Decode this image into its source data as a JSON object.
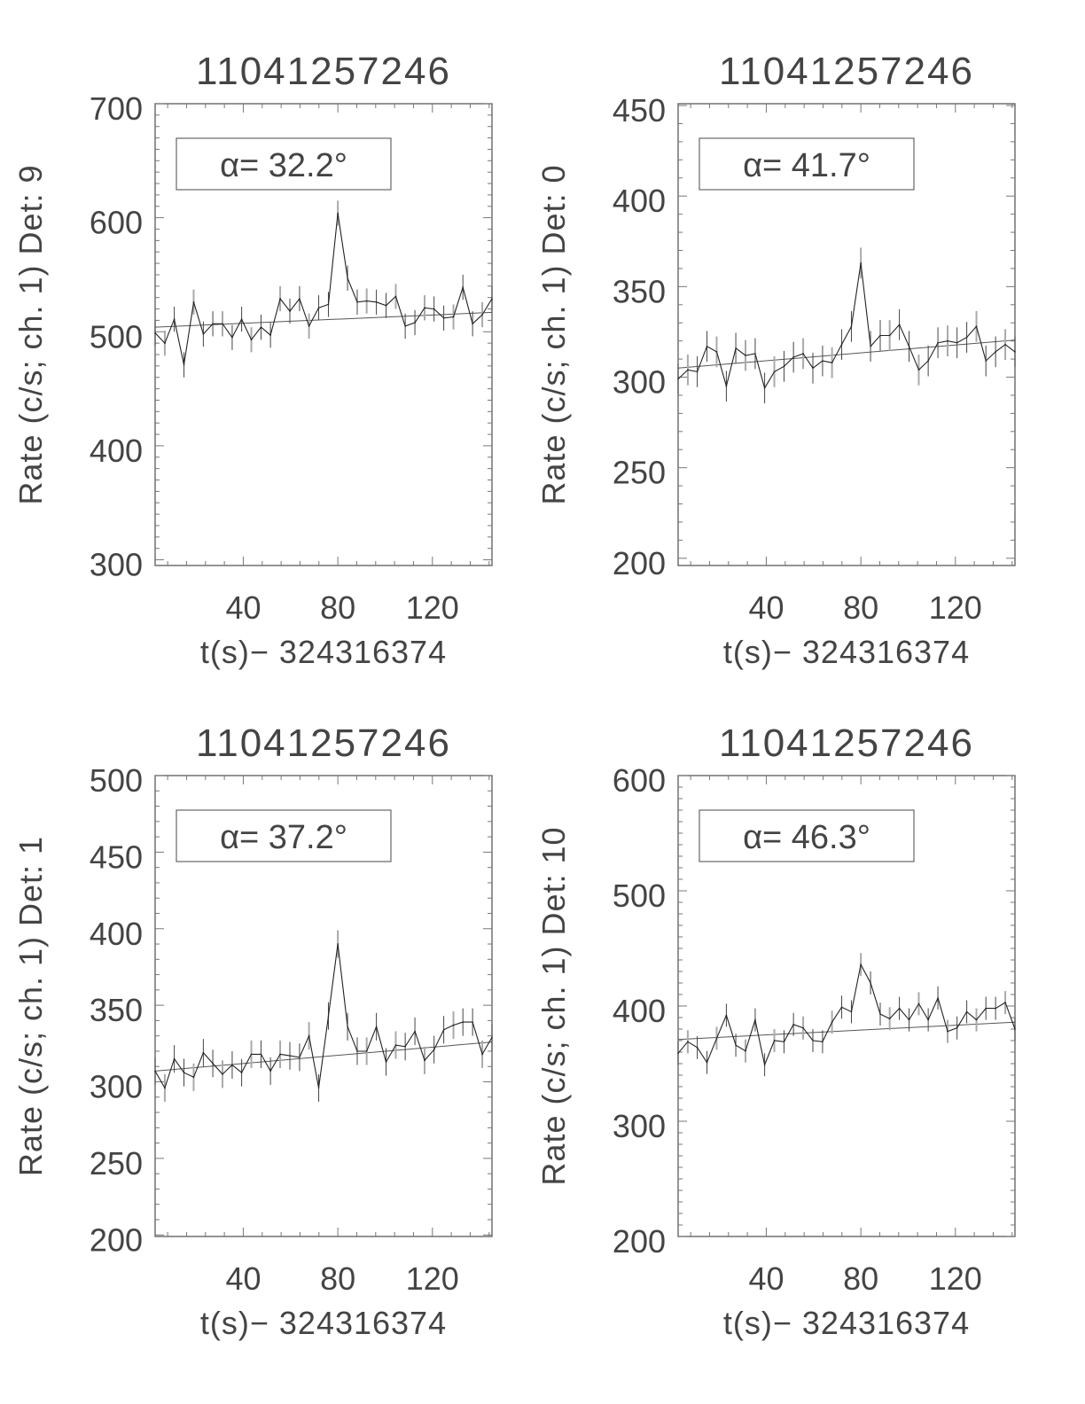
{
  "chart_data": [
    {
      "type": "line",
      "title": "11041257246",
      "ylabel": "Rate (c/s; ch. 1) Det: 9",
      "xlabel": "t(s)− 324316374",
      "annotation": "α= 32.2°",
      "xlim": [
        2.7,
        145.2
      ],
      "ylim": [
        295,
        700
      ],
      "xticks": [
        40,
        80,
        120
      ],
      "yticks": [
        300,
        400,
        500,
        600,
        700
      ],
      "grid": false,
      "x": [
        2.7,
        6.8,
        10.8,
        14.9,
        19.0,
        23.1,
        27.1,
        31.2,
        35.3,
        39.3,
        43.4,
        47.5,
        51.5,
        55.6,
        59.7,
        63.8,
        67.8,
        71.9,
        76.0,
        80.0,
        84.1,
        88.2,
        92.2,
        96.3,
        100.4,
        104.5,
        108.5,
        112.6,
        116.7,
        120.7,
        124.8,
        128.9,
        132.9,
        137.0,
        141.1,
        145.2
      ],
      "y": [
        499,
        490,
        511,
        471,
        526,
        498,
        507,
        507,
        495,
        511,
        493,
        504,
        497,
        529,
        518,
        529,
        505,
        521,
        524,
        604,
        547,
        526,
        527,
        526,
        523,
        531,
        505,
        508,
        521,
        520,
        512,
        513,
        539,
        507,
        515,
        529
      ],
      "yerr": 11,
      "fit": [
        [
          2.7,
          504
        ],
        [
          145.2,
          517
        ]
      ]
    },
    {
      "type": "line",
      "title": "11041257246",
      "ylabel": "Rate (c/s; ch. 1) Det: 0",
      "xlabel": "t(s)− 324316374",
      "annotation": "α= 41.7°",
      "xlim": [
        2.7,
        145.2
      ],
      "ylim": [
        196,
        451
      ],
      "xticks": [
        40,
        80,
        120
      ],
      "yticks": [
        200,
        250,
        300,
        350,
        400,
        450
      ],
      "grid": false,
      "x": [
        2.7,
        6.8,
        10.8,
        14.9,
        19.0,
        23.1,
        27.1,
        31.2,
        35.3,
        39.3,
        43.4,
        47.5,
        51.5,
        55.6,
        59.7,
        63.8,
        67.8,
        71.9,
        76.0,
        80.0,
        84.1,
        88.2,
        92.2,
        96.3,
        100.4,
        104.5,
        108.5,
        112.6,
        116.7,
        120.7,
        124.8,
        128.9,
        132.9,
        137.0,
        141.1,
        145.2
      ],
      "y": [
        299,
        304,
        303,
        317,
        314,
        295,
        316,
        312,
        313,
        294,
        303,
        306,
        311,
        313,
        305,
        309,
        308,
        318,
        328,
        363,
        317,
        323,
        323,
        329,
        317,
        304,
        309,
        319,
        320,
        319,
        322,
        328,
        309,
        314,
        318,
        314
      ],
      "yerr": 8.5,
      "fit": [
        [
          2.7,
          305
        ],
        [
          145.2,
          320.5
        ]
      ]
    },
    {
      "type": "line",
      "title": "11041257246",
      "ylabel": "Rate (c/s; ch. 1) Det: 1",
      "xlabel": "t(s)− 324316374",
      "annotation": "α= 37.2°",
      "xlim": [
        2.7,
        145.2
      ],
      "ylim": [
        199,
        500
      ],
      "xticks": [
        40,
        80,
        120
      ],
      "yticks": [
        200,
        250,
        300,
        350,
        400,
        450,
        500
      ],
      "grid": false,
      "x": [
        2.7,
        6.8,
        10.8,
        14.9,
        19.0,
        23.1,
        27.1,
        31.2,
        35.3,
        39.3,
        43.4,
        47.5,
        51.5,
        55.6,
        59.7,
        63.8,
        67.8,
        71.9,
        76.0,
        80.0,
        84.1,
        88.2,
        92.2,
        96.3,
        100.4,
        104.5,
        108.5,
        112.6,
        116.7,
        120.7,
        124.8,
        128.9,
        132.9,
        137.0,
        141.1,
        145.2
      ],
      "y": [
        307,
        296,
        315,
        306,
        303,
        319,
        312,
        305,
        311,
        306,
        318,
        318,
        307,
        318,
        317,
        316,
        330,
        296,
        343,
        390,
        336,
        320,
        320,
        336,
        313,
        324,
        323,
        333,
        314,
        321,
        334,
        337,
        339,
        339,
        318,
        329
      ],
      "yerr": 9,
      "fit": [
        [
          2.7,
          307
        ],
        [
          145.2,
          326
        ]
      ]
    },
    {
      "type": "line",
      "title": "11041257246",
      "ylabel": "Rate (c/s; ch. 1) Det: 10",
      "xlabel": "t(s)− 324316374",
      "annotation": "α= 46.3°",
      "xlim": [
        2.7,
        145.2
      ],
      "ylim": [
        200,
        600
      ],
      "xticks": [
        40,
        80,
        120
      ],
      "yticks": [
        200,
        300,
        400,
        500,
        600
      ],
      "grid": false,
      "x": [
        2.7,
        6.8,
        10.8,
        14.9,
        19.0,
        23.1,
        27.1,
        31.2,
        35.3,
        39.3,
        43.4,
        47.5,
        51.5,
        55.6,
        59.7,
        63.8,
        67.8,
        71.9,
        76.0,
        80.0,
        84.1,
        88.2,
        92.2,
        96.3,
        100.4,
        104.5,
        108.5,
        112.6,
        116.7,
        120.7,
        124.8,
        128.9,
        132.9,
        137.0,
        141.1,
        145.2
      ],
      "y": [
        359,
        369,
        364,
        351,
        372,
        392,
        366,
        361,
        388,
        349,
        370,
        369,
        384,
        381,
        370,
        369,
        386,
        399,
        395,
        436,
        420,
        393,
        389,
        398,
        388,
        402,
        388,
        407,
        378,
        381,
        395,
        388,
        398,
        398,
        403,
        380
      ],
      "yerr": 10,
      "fit": [
        [
          2.7,
          371
        ],
        [
          145.2,
          386
        ]
      ]
    }
  ]
}
